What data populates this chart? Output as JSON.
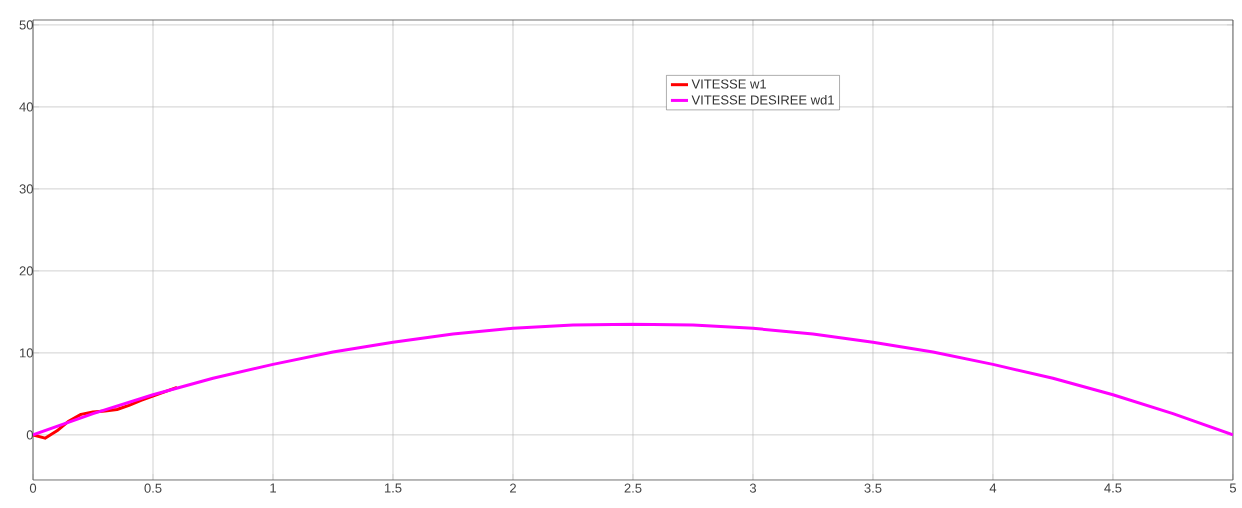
{
  "chart_data": {
    "type": "line",
    "xlim": [
      0,
      5
    ],
    "ylim": [
      -5.5,
      50.6
    ],
    "xticks": [
      0,
      0.5,
      1,
      1.5,
      2,
      2.5,
      3,
      3.5,
      4,
      4.5,
      5
    ],
    "yticks": [
      0,
      10,
      20,
      30,
      40,
      50
    ],
    "grid": true,
    "legend": "top",
    "marker": "none",
    "line_style": "solid",
    "series": [
      {
        "name": "VITESSE w1",
        "color": "#ff0000",
        "x": [
          0,
          0.05,
          0.1,
          0.15,
          0.2,
          0.25,
          0.3,
          0.35,
          0.4,
          0.45,
          0.6
        ],
        "values": [
          0,
          -0.4,
          0.5,
          1.7,
          2.5,
          2.8,
          2.9,
          3.1,
          3.6,
          4.2,
          5.8
        ]
      },
      {
        "name": "VITESSE DESIREE wd1",
        "color": "#ff00ff",
        "x": [
          0,
          0.25,
          0.5,
          0.75,
          1,
          1.25,
          1.5,
          1.75,
          2,
          2.25,
          2.5,
          2.75,
          3,
          3.25,
          3.5,
          3.75,
          4,
          4.25,
          4.5,
          4.75,
          5
        ],
        "values": [
          0,
          2.6,
          4.9,
          6.9,
          8.6,
          10.1,
          11.3,
          12.3,
          13,
          13.4,
          13.5,
          13.4,
          13,
          12.3,
          11.3,
          10.1,
          8.6,
          6.9,
          4.9,
          2.6,
          0
        ]
      }
    ]
  }
}
